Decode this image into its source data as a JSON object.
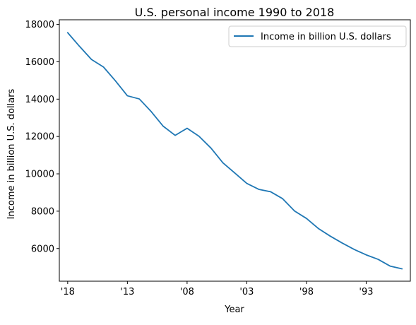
{
  "chart_data": {
    "type": "line",
    "title": "U.S. personal income 1990 to 2018",
    "xlabel": "Year",
    "ylabel": "Income in billion U.S. dollars",
    "x": [
      2018,
      2017,
      2016,
      2015,
      2014,
      2013,
      2012,
      2011,
      2010,
      2009,
      2008,
      2007,
      2006,
      2005,
      2004,
      2003,
      2002,
      2001,
      2000,
      1999,
      1998,
      1997,
      1996,
      1995,
      1994,
      1993,
      1992,
      1991,
      1990
    ],
    "x_reversed": true,
    "x_ticks": [
      2018,
      2013,
      2008,
      2003,
      1998,
      1993
    ],
    "x_tick_labels": [
      "'18",
      "'13",
      "'08",
      "'03",
      "'98",
      "'93"
    ],
    "y_ticks": [
      6000,
      8000,
      10000,
      12000,
      14000,
      16000,
      18000
    ],
    "y_tick_labels": [
      "6000",
      "8000",
      "10000",
      "12000",
      "14000",
      "16000",
      "18000"
    ],
    "ylim": [
      4250,
      18250
    ],
    "xlim": [
      2018.7,
      1989.3
    ],
    "grid": false,
    "legend_position": "top-right",
    "series": [
      {
        "name": "Income in billion U.S. dollars",
        "color": "#1f77b4",
        "values": [
          17560,
          16820,
          16120,
          15720,
          14980,
          14180,
          14010,
          13330,
          12550,
          12060,
          12440,
          12010,
          11380,
          10590,
          10040,
          9490,
          9170,
          9040,
          8670,
          8010,
          7610,
          7070,
          6660,
          6290,
          5950,
          5660,
          5420,
          5060,
          4910
        ]
      }
    ]
  }
}
